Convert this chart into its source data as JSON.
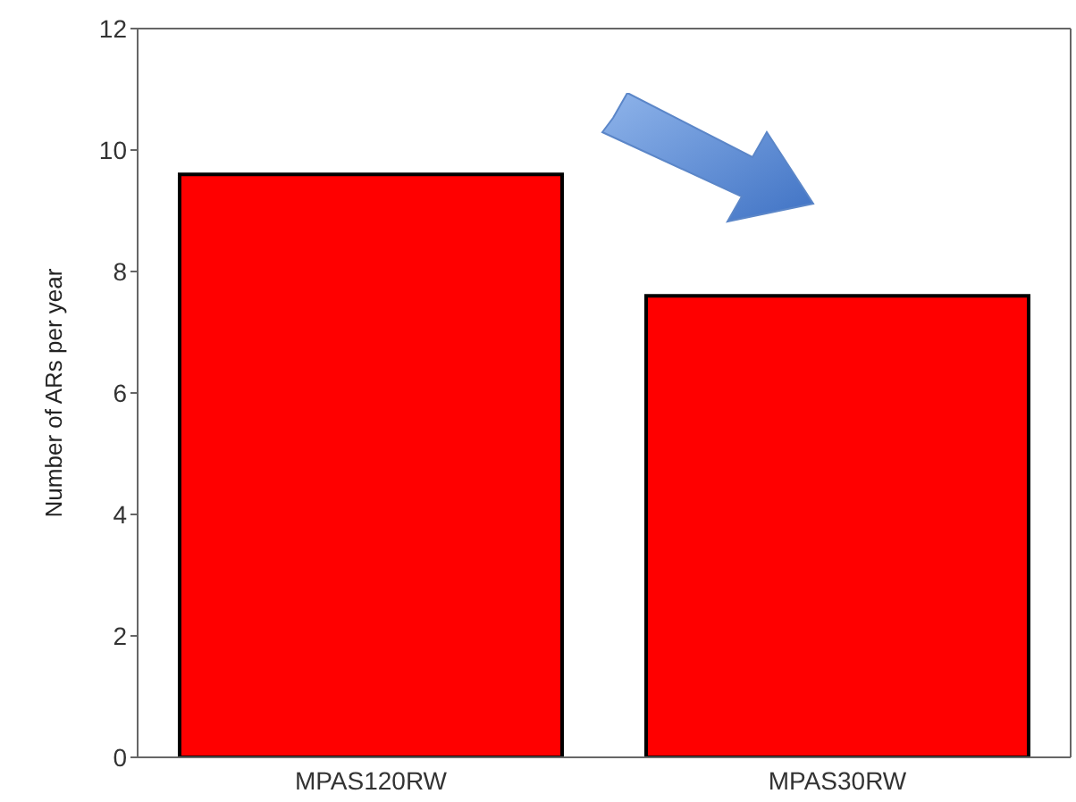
{
  "chart_data": {
    "type": "bar",
    "ylabel": "Number of ARs per year",
    "categories": [
      "MPAS120RW",
      "MPAS30RW"
    ],
    "values": [
      9.6,
      7.6
    ],
    "color": "#ff0000",
    "ylim": [
      0,
      12
    ],
    "yticks": [
      0,
      2,
      4,
      6,
      8,
      10,
      12
    ]
  }
}
